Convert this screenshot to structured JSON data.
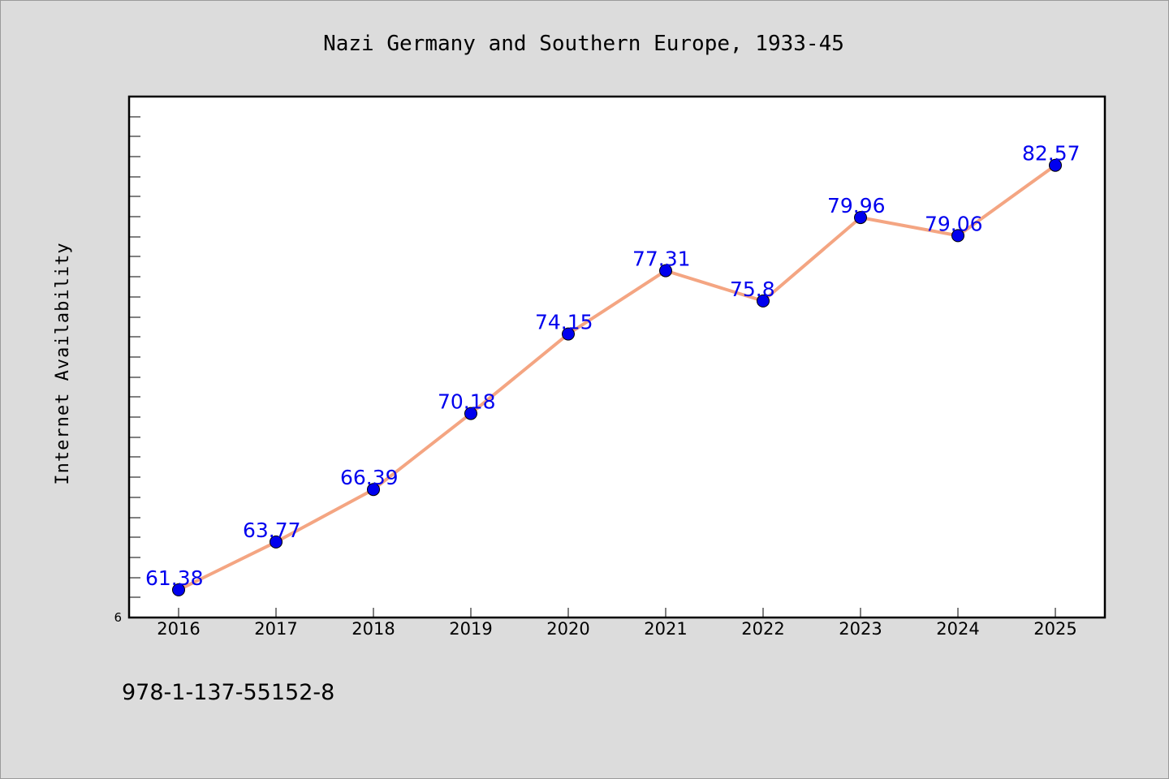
{
  "chart_data": {
    "type": "line",
    "title": "Nazi Germany and Southern Europe, 1933-45",
    "ylabel": "Internet Availability",
    "xlabel": "",
    "categories": [
      "2016",
      "2017",
      "2018",
      "2019",
      "2020",
      "2021",
      "2022",
      "2023",
      "2024",
      "2025"
    ],
    "values": [
      61.38,
      63.77,
      66.39,
      70.18,
      74.15,
      77.31,
      75.8,
      79.96,
      79.06,
      82.57
    ],
    "data_labels": [
      "61.38",
      "63.77",
      "66.39",
      "70.18",
      "74.15",
      "77.31",
      "75.8",
      "79.96",
      "79.06",
      "82.57"
    ],
    "ylim": [
      60,
      86
    ],
    "y_tick_labels": [
      "6"
    ],
    "grid": false,
    "legend": "none",
    "colors": {
      "line": "#f4a582",
      "marker": "#0000ee",
      "label": "#0000ee",
      "plot_background": "#ffffff",
      "page_background": "#dcdcdc"
    }
  },
  "footer": {
    "isbn": "978-1-137-55152-8"
  }
}
